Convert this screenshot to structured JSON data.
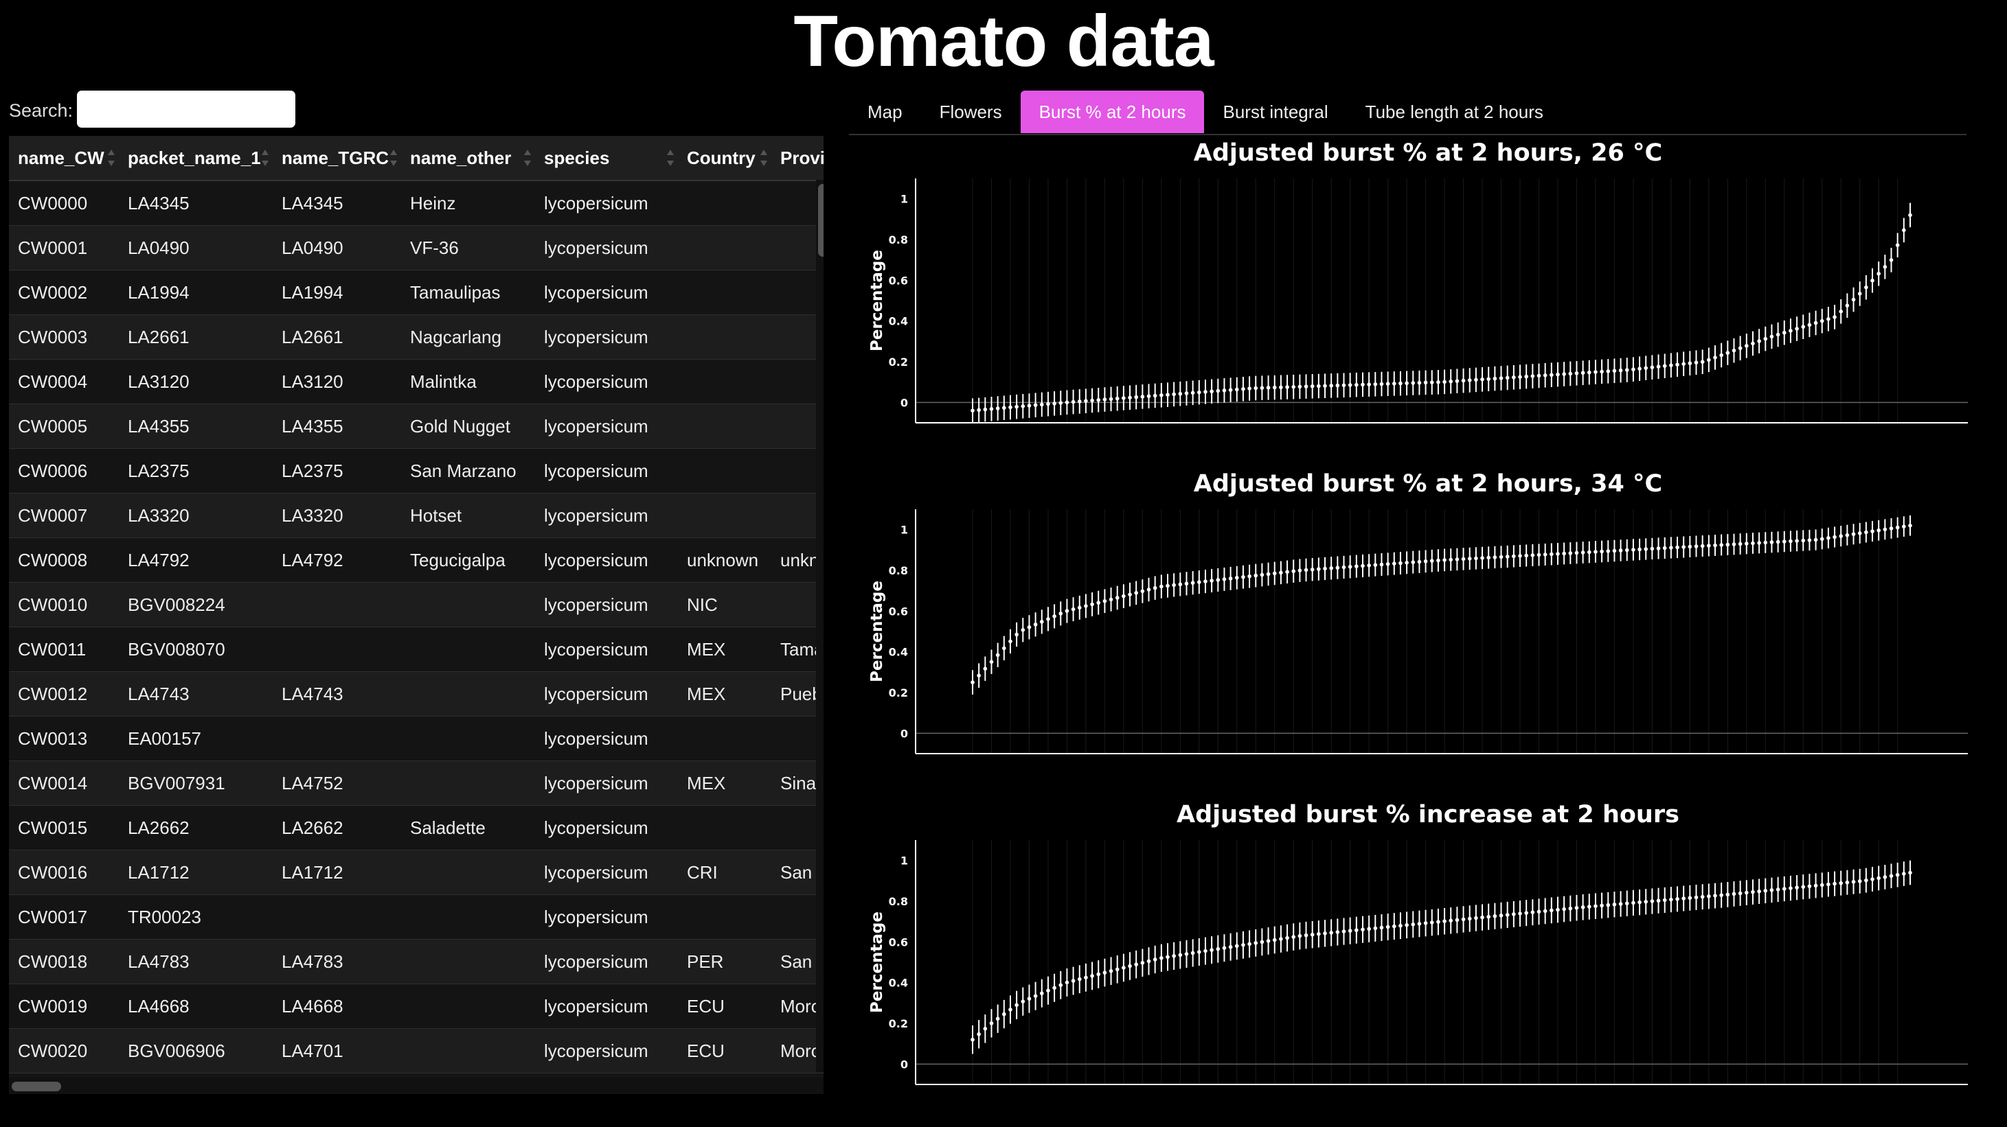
{
  "page": {
    "title": "Tomato data"
  },
  "search": {
    "label": "Search:",
    "value": ""
  },
  "table": {
    "columns": [
      "name_CW",
      "packet_name_1",
      "name_TGRC",
      "name_other",
      "species",
      "Country",
      "Province"
    ],
    "rows": [
      [
        "CW0000",
        "LA4345",
        "LA4345",
        "Heinz",
        "lycopersicum",
        "",
        ""
      ],
      [
        "CW0001",
        "LA0490",
        "LA0490",
        "VF-36",
        "lycopersicum",
        "",
        ""
      ],
      [
        "CW0002",
        "LA1994",
        "LA1994",
        "Tamaulipas",
        "lycopersicum",
        "",
        ""
      ],
      [
        "CW0003",
        "LA2661",
        "LA2661",
        "Nagcarlang",
        "lycopersicum",
        "",
        ""
      ],
      [
        "CW0004",
        "LA3120",
        "LA3120",
        "Malintka",
        "lycopersicum",
        "",
        ""
      ],
      [
        "CW0005",
        "LA4355",
        "LA4355",
        "Gold Nugget",
        "lycopersicum",
        "",
        ""
      ],
      [
        "CW0006",
        "LA2375",
        "LA2375",
        "San Marzano",
        "lycopersicum",
        "",
        ""
      ],
      [
        "CW0007",
        "LA3320",
        "LA3320",
        "Hotset",
        "lycopersicum",
        "",
        ""
      ],
      [
        "CW0008",
        "LA4792",
        "LA4792",
        "Tegucigalpa",
        "lycopersicum",
        "unknown",
        "unknown"
      ],
      [
        "CW0010",
        "BGV008224",
        "",
        "",
        "lycopersicum",
        "NIC",
        ""
      ],
      [
        "CW0011",
        "BGV008070",
        "",
        "",
        "lycopersicum",
        "MEX",
        "Tamaulipas"
      ],
      [
        "CW0012",
        "LA4743",
        "LA4743",
        "",
        "lycopersicum",
        "MEX",
        "Puebla"
      ],
      [
        "CW0013",
        "EA00157",
        "",
        "",
        "lycopersicum",
        "",
        ""
      ],
      [
        "CW0014",
        "BGV007931",
        "LA4752",
        "",
        "lycopersicum",
        "MEX",
        "Sinaloa"
      ],
      [
        "CW0015",
        "LA2662",
        "LA2662",
        "Saladette",
        "lycopersicum",
        "",
        ""
      ],
      [
        "CW0016",
        "LA1712",
        "LA1712",
        "",
        "lycopersicum",
        "CRI",
        "San Jose"
      ],
      [
        "CW0017",
        "TR00023",
        "",
        "",
        "lycopersicum",
        "",
        ""
      ],
      [
        "CW0018",
        "LA4783",
        "LA4783",
        "",
        "lycopersicum",
        "PER",
        "San Martin"
      ],
      [
        "CW0019",
        "LA4668",
        "LA4668",
        "",
        "lycopersicum",
        "ECU",
        "Morona"
      ],
      [
        "CW0020",
        "BGV006906",
        "LA4701",
        "",
        "lycopersicum",
        "ECU",
        "Morona"
      ]
    ]
  },
  "tabs": [
    {
      "label": "Map",
      "active": false
    },
    {
      "label": "Flowers",
      "active": false
    },
    {
      "label": "Burst % at 2 hours",
      "active": true
    },
    {
      "label": "Burst integral",
      "active": false
    },
    {
      "label": "Tube length at 2 hours",
      "active": false
    }
  ],
  "colors": {
    "accent": "#e356e6",
    "background": "#000000",
    "marks": "#ffffff"
  },
  "chart_data": [
    {
      "type": "scatter",
      "title": "Adjusted burst % at 2 hours, 26 °C",
      "xlabel": "",
      "ylabel": "Percentage",
      "ylim": [
        -0.1,
        1.1
      ],
      "yticks": [
        0,
        0.2,
        0.4,
        0.6,
        0.8,
        1
      ],
      "shape": "rising sorted accessions with error bars",
      "n_points": 150,
      "anchors": [
        [
          0,
          -0.04
        ],
        [
          0.1,
          0.0
        ],
        [
          0.3,
          0.07
        ],
        [
          0.5,
          0.1
        ],
        [
          0.6,
          0.13
        ],
        [
          0.7,
          0.16
        ],
        [
          0.78,
          0.2
        ],
        [
          0.85,
          0.32
        ],
        [
          0.92,
          0.42
        ],
        [
          0.95,
          0.55
        ],
        [
          0.98,
          0.7
        ],
        [
          1.0,
          0.92
        ]
      ],
      "err_start": 0.06,
      "err_end": 0.06
    },
    {
      "type": "scatter",
      "title": "Adjusted burst % at 2 hours, 34 °C",
      "xlabel": "",
      "ylabel": "Percentage",
      "ylim": [
        -0.1,
        1.1
      ],
      "yticks": [
        0,
        0.2,
        0.4,
        0.6,
        0.8,
        1
      ],
      "shape": "rising sorted accessions with error bars",
      "n_points": 150,
      "anchors": [
        [
          0,
          0.25
        ],
        [
          0.02,
          0.35
        ],
        [
          0.05,
          0.5
        ],
        [
          0.1,
          0.6
        ],
        [
          0.2,
          0.72
        ],
        [
          0.35,
          0.8
        ],
        [
          0.5,
          0.85
        ],
        [
          0.7,
          0.9
        ],
        [
          0.9,
          0.95
        ],
        [
          1.0,
          1.02
        ]
      ],
      "err_start": 0.06,
      "err_end": 0.05
    },
    {
      "type": "scatter",
      "title": "Adjusted burst % increase at 2 hours",
      "xlabel": "",
      "ylabel": "Percentage",
      "ylim": [
        -0.1,
        1.1
      ],
      "yticks": [
        0,
        0.2,
        0.4,
        0.6,
        0.8,
        1
      ],
      "shape": "rising sorted accessions with error bars",
      "n_points": 150,
      "anchors": [
        [
          0,
          0.12
        ],
        [
          0.02,
          0.2
        ],
        [
          0.05,
          0.3
        ],
        [
          0.1,
          0.4
        ],
        [
          0.2,
          0.52
        ],
        [
          0.35,
          0.63
        ],
        [
          0.5,
          0.7
        ],
        [
          0.65,
          0.77
        ],
        [
          0.8,
          0.83
        ],
        [
          0.95,
          0.9
        ],
        [
          1.0,
          0.94
        ]
      ],
      "err_start": 0.07,
      "err_end": 0.06
    }
  ]
}
